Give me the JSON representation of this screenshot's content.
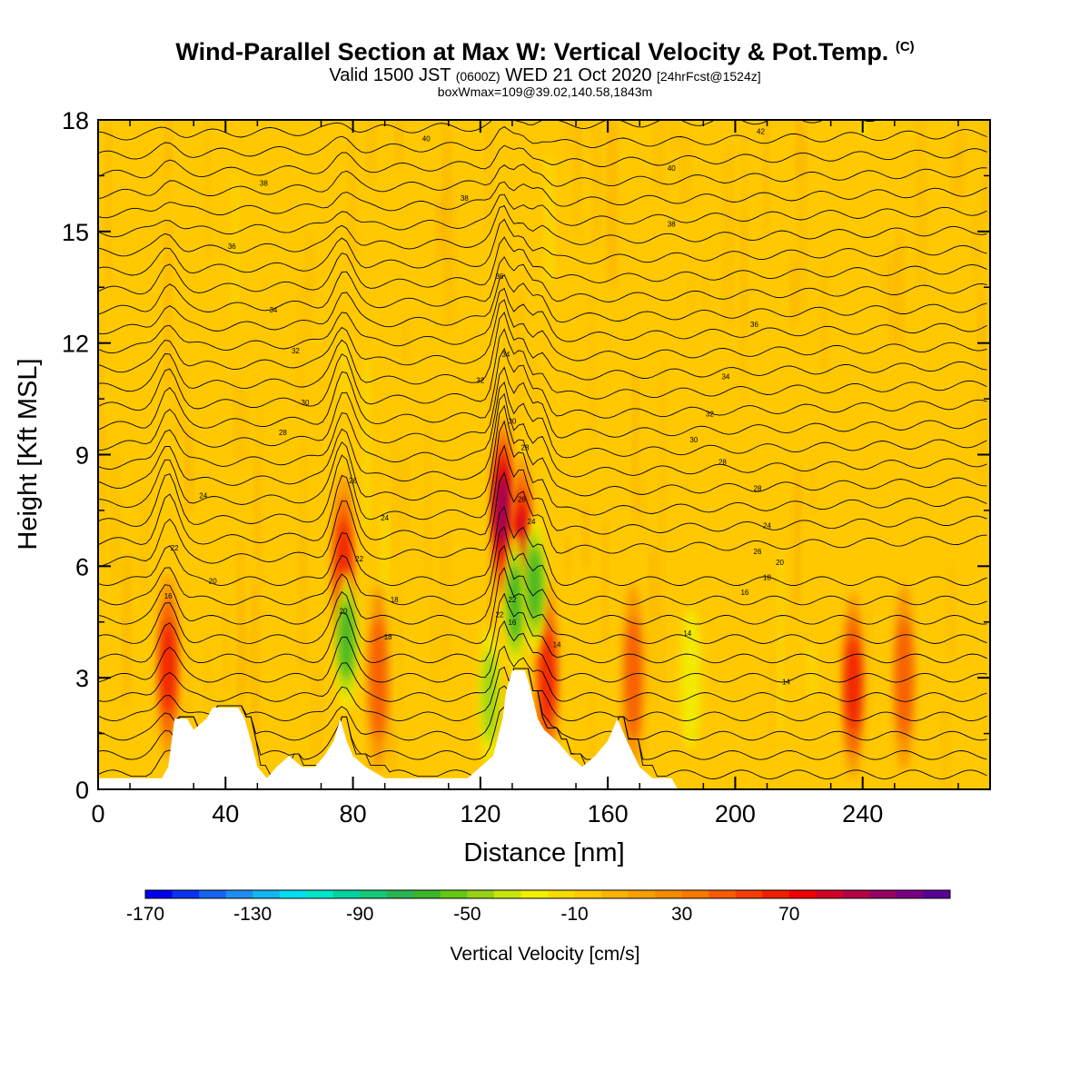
{
  "header": {
    "title": "Wind-Parallel Section at Max W: Vertical Velocity & Pot.Temp.",
    "title_suffix": "(C)",
    "valid_prefix": "Valid 1500 JST",
    "valid_zulu": "(0600Z)",
    "valid_date": "WED 21 Oct 2020",
    "forecast": "[24hrFcst@1524z]",
    "boxinfo": "boxWmax=109@39.02,140.58,1843m"
  },
  "colorbar": {
    "label": "Vertical Velocity [cm/s]",
    "ticks": [
      -170,
      -130,
      -90,
      -50,
      -10,
      30,
      70
    ],
    "min": -170,
    "step": 10,
    "colors": [
      "#0000f0",
      "#0a32f0",
      "#1464f0",
      "#1e8cf0",
      "#14b4f0",
      "#00dcf0",
      "#00e6c8",
      "#00d2a0",
      "#14c878",
      "#28b450",
      "#3cb428",
      "#64c814",
      "#96d214",
      "#c8e60a",
      "#f0f000",
      "#f8dc00",
      "#ffc800",
      "#f8b400",
      "#f8a000",
      "#f88c00",
      "#f87800",
      "#f85a00",
      "#f83c00",
      "#f01e00",
      "#f00000",
      "#d20028",
      "#b40046",
      "#960064",
      "#780082",
      "#5a0096"
    ]
  },
  "chart_data": {
    "type": "heatmap",
    "xlabel": "Distance [nm]",
    "ylabel": "Height [Kft MSL]",
    "xlim": [
      0,
      280
    ],
    "ylim": [
      0,
      18
    ],
    "xticks": [
      0,
      40,
      80,
      120,
      160,
      200,
      240
    ],
    "yticks": [
      0,
      3,
      6,
      9,
      12,
      15,
      18
    ],
    "background_velocity_cm_s": -10,
    "terrain_kft": [
      [
        0,
        0.3
      ],
      [
        20,
        0.3
      ],
      [
        22,
        0.6
      ],
      [
        24,
        1.9
      ],
      [
        28,
        1.9
      ],
      [
        30,
        1.6
      ],
      [
        34,
        1.9
      ],
      [
        36,
        2.2
      ],
      [
        44,
        2.2
      ],
      [
        46,
        1.9
      ],
      [
        48,
        1.3
      ],
      [
        50,
        0.6
      ],
      [
        53,
        0.3
      ],
      [
        56,
        0.6
      ],
      [
        60,
        0.9
      ],
      [
        64,
        0.6
      ],
      [
        68,
        0.6
      ],
      [
        71,
        0.9
      ],
      [
        74,
        1.3
      ],
      [
        76,
        1.9
      ],
      [
        78,
        1.3
      ],
      [
        80,
        0.9
      ],
      [
        84,
        0.6
      ],
      [
        90,
        0.3
      ],
      [
        116,
        0.3
      ],
      [
        120,
        0.6
      ],
      [
        124,
        0.9
      ],
      [
        127,
        1.9
      ],
      [
        128,
        2.6
      ],
      [
        130,
        3.2
      ],
      [
        134,
        3.2
      ],
      [
        136,
        2.6
      ],
      [
        138,
        1.9
      ],
      [
        140,
        1.6
      ],
      [
        144,
        1.3
      ],
      [
        148,
        0.9
      ],
      [
        152,
        0.6
      ],
      [
        156,
        0.9
      ],
      [
        160,
        1.3
      ],
      [
        163,
        1.9
      ],
      [
        166,
        1.3
      ],
      [
        170,
        0.6
      ],
      [
        174,
        0.3
      ],
      [
        180,
        0.3
      ],
      [
        182,
        0
      ],
      [
        280,
        0
      ]
    ],
    "vertical_velocity_maxima": [
      {
        "x": 22,
        "z": 3.3,
        "w": 60
      },
      {
        "x": 77,
        "z": 6.0,
        "w": 60
      },
      {
        "x": 88,
        "z": 3.0,
        "w": 40
      },
      {
        "x": 127,
        "z": 7.5,
        "w": 110
      },
      {
        "x": 133,
        "z": 6.5,
        "w": 90
      },
      {
        "x": 141,
        "z": 3.0,
        "w": 60
      },
      {
        "x": 168,
        "z": 3.0,
        "w": 50
      },
      {
        "x": 237,
        "z": 2.8,
        "w": 60
      },
      {
        "x": 253,
        "z": 3.0,
        "w": 40
      }
    ],
    "vertical_velocity_minima": [
      {
        "x": 78,
        "z": 4.0,
        "w": -70
      },
      {
        "x": 131,
        "z": 5.0,
        "w": -80
      },
      {
        "x": 137,
        "z": 5.5,
        "w": -70
      },
      {
        "x": 123,
        "z": 2.5,
        "w": -50
      },
      {
        "x": 186,
        "z": 3.0,
        "w": -40
      }
    ],
    "theta_contours_C": [
      {
        "label": "14",
        "x": 216,
        "z": 2.9
      },
      {
        "label": "14",
        "x": 144,
        "z": 3.9
      },
      {
        "label": "14",
        "x": 185,
        "z": 4.2
      },
      {
        "label": "16",
        "x": 130,
        "z": 4.5
      },
      {
        "label": "16",
        "x": 203,
        "z": 5.3
      },
      {
        "label": "16",
        "x": 22,
        "z": 5.2
      },
      {
        "label": "18",
        "x": 93,
        "z": 5.1
      },
      {
        "label": "18",
        "x": 91,
        "z": 4.1
      },
      {
        "label": "18",
        "x": 210,
        "z": 5.7
      },
      {
        "label": "20",
        "x": 36,
        "z": 5.6
      },
      {
        "label": "20",
        "x": 77,
        "z": 4.8
      },
      {
        "label": "20",
        "x": 214,
        "z": 6.1
      },
      {
        "label": "22",
        "x": 24,
        "z": 6.5
      },
      {
        "label": "22",
        "x": 82,
        "z": 6.2
      },
      {
        "label": "22",
        "x": 126,
        "z": 4.7
      },
      {
        "label": "22",
        "x": 130,
        "z": 5.1
      },
      {
        "label": "24",
        "x": 33,
        "z": 7.9
      },
      {
        "label": "24",
        "x": 90,
        "z": 7.3
      },
      {
        "label": "24",
        "x": 136,
        "z": 7.2
      },
      {
        "label": "24",
        "x": 210,
        "z": 7.1
      },
      {
        "label": "26",
        "x": 80,
        "z": 8.3
      },
      {
        "label": "26",
        "x": 207,
        "z": 6.4
      },
      {
        "label": "26",
        "x": 133,
        "z": 7.8
      },
      {
        "label": "28",
        "x": 58,
        "z": 9.6
      },
      {
        "label": "28",
        "x": 134,
        "z": 9.2
      },
      {
        "label": "28",
        "x": 196,
        "z": 8.8
      },
      {
        "label": "28",
        "x": 207,
        "z": 8.1
      },
      {
        "label": "30",
        "x": 65,
        "z": 10.4
      },
      {
        "label": "30",
        "x": 130,
        "z": 9.9
      },
      {
        "label": "30",
        "x": 187,
        "z": 9.4
      },
      {
        "label": "32",
        "x": 62,
        "z": 11.8
      },
      {
        "label": "32",
        "x": 120,
        "z": 11.0
      },
      {
        "label": "32",
        "x": 192,
        "z": 10.1
      },
      {
        "label": "34",
        "x": 55,
        "z": 12.9
      },
      {
        "label": "34",
        "x": 128,
        "z": 11.7
      },
      {
        "label": "34",
        "x": 197,
        "z": 11.1
      },
      {
        "label": "36",
        "x": 42,
        "z": 14.6
      },
      {
        "label": "36",
        "x": 126,
        "z": 13.8
      },
      {
        "label": "36",
        "x": 206,
        "z": 12.5
      },
      {
        "label": "38",
        "x": 52,
        "z": 16.3
      },
      {
        "label": "38",
        "x": 115,
        "z": 15.9
      },
      {
        "label": "38",
        "x": 180,
        "z": 15.2
      },
      {
        "label": "40",
        "x": 103,
        "z": 17.5
      },
      {
        "label": "40",
        "x": 180,
        "z": 16.7
      },
      {
        "label": "42",
        "x": 208,
        "z": 17.7
      }
    ]
  }
}
